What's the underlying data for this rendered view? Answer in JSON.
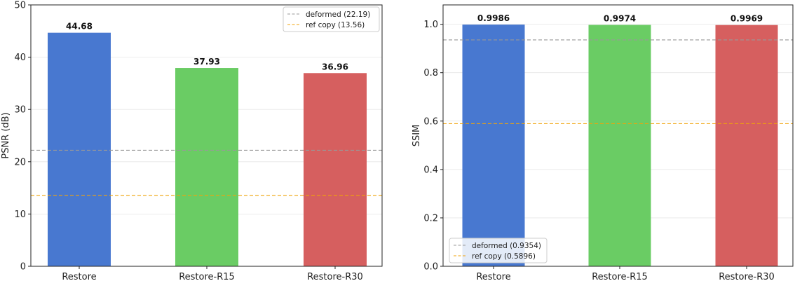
{
  "chart_data": [
    {
      "type": "bar",
      "title": "",
      "xlabel": "",
      "ylabel": "PSNR (dB)",
      "ylim": [
        0,
        50
      ],
      "yticks": [
        0,
        10,
        20,
        30,
        40,
        50
      ],
      "grid": true,
      "categories": [
        "Restore",
        "Restore-R15",
        "Restore-R30"
      ],
      "values": [
        44.68,
        37.93,
        36.96
      ],
      "value_labels": [
        "44.68",
        "37.93",
        "36.96"
      ],
      "bar_colors": [
        "#4878d0",
        "#6acc64",
        "#d65f5f"
      ],
      "reference_lines": [
        {
          "label": "deformed (22.19)",
          "value": 22.19,
          "color": "#999999"
        },
        {
          "label": "ref copy (13.56)",
          "value": 13.56,
          "color": "#f0a30a"
        }
      ],
      "legend_position": "top-right"
    },
    {
      "type": "bar",
      "title": "",
      "xlabel": "",
      "ylabel": "SSIM",
      "ylim": [
        0,
        1.08
      ],
      "yticks": [
        "0.0",
        "0.2",
        "0.4",
        "0.6",
        "0.8",
        "1.0"
      ],
      "grid": true,
      "categories": [
        "Restore",
        "Restore-R15",
        "Restore-R30"
      ],
      "values": [
        0.9986,
        0.9974,
        0.9969
      ],
      "value_labels": [
        "0.9986",
        "0.9974",
        "0.9969"
      ],
      "bar_colors": [
        "#4878d0",
        "#6acc64",
        "#d65f5f"
      ],
      "reference_lines": [
        {
          "label": "deformed (0.9354)",
          "value": 0.9354,
          "color": "#999999"
        },
        {
          "label": "ref copy (0.5896)",
          "value": 0.5896,
          "color": "#f0a30a"
        }
      ],
      "legend_position": "bottom-left"
    }
  ]
}
